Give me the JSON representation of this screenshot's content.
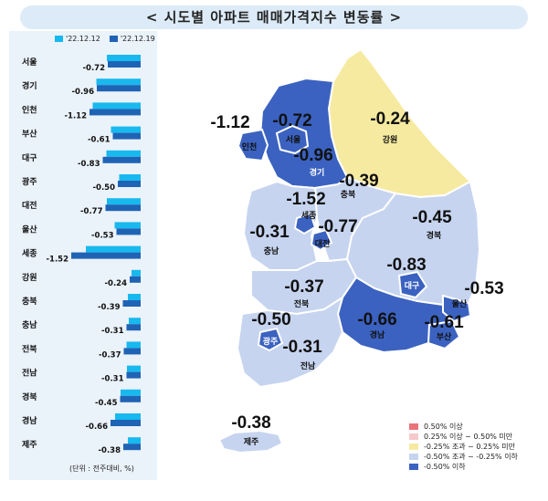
{
  "title": "< 시도별 아파트 매매가격지수 변동률 >",
  "unit_note": "(단위 : 전주대비, %)",
  "colors": {
    "series_prev": "#18b9ee",
    "series_curr": "#1f63b5",
    "map_dark": "#3b62c0",
    "map_light": "#c6d4ef",
    "map_yellow": "#f6eaa1",
    "panel_bg": "#eaf2fa",
    "title_bg": "#dcebf7"
  },
  "chart_data": [
    {
      "type": "bar",
      "orientation": "horizontal",
      "categories": [
        "서울",
        "경기",
        "인천",
        "부산",
        "대구",
        "광주",
        "대전",
        "울산",
        "세종",
        "강원",
        "충북",
        "충남",
        "전북",
        "전남",
        "경북",
        "경남",
        "제주"
      ],
      "series": [
        {
          "name": "'22.12.12",
          "values": [
            -0.74,
            -0.97,
            -1.05,
            -0.65,
            -0.75,
            -0.47,
            -0.74,
            -0.57,
            -1.2,
            -0.2,
            -0.28,
            -0.26,
            -0.31,
            -0.3,
            -0.44,
            -0.56,
            -0.28
          ]
        },
        {
          "name": "'22.12.19",
          "values": [
            -0.72,
            -0.96,
            -1.12,
            -0.61,
            -0.83,
            -0.5,
            -0.77,
            -0.53,
            -1.52,
            -0.24,
            -0.39,
            -0.31,
            -0.37,
            -0.31,
            -0.45,
            -0.66,
            -0.38
          ]
        }
      ],
      "data_labels": [
        "-0.72",
        "-0.96",
        "-1.12",
        "-0.61",
        "-0.83",
        "-0.50",
        "-0.77",
        "-0.53",
        "-1.52",
        "-0.24",
        "-0.39",
        "-0.31",
        "-0.37",
        "-0.31",
        "-0.45",
        "-0.66",
        "-0.38"
      ],
      "legend_position": "top",
      "grid": false
    },
    {
      "type": "choropleth-map",
      "regions": [
        {
          "name": "서울",
          "value": "-0.72",
          "class": "-0.50% 이하"
        },
        {
          "name": "경기",
          "value": "-0.96",
          "class": "-0.50% 이하"
        },
        {
          "name": "인천",
          "value": "-1.12",
          "class": "-0.50% 이하"
        },
        {
          "name": "강원",
          "value": "-0.24",
          "class": "-0.25% 조과 ~ 0.25% 미만"
        },
        {
          "name": "충북",
          "value": "-0.39",
          "class": "-0.50% 조과 ~ -0.25% 이하"
        },
        {
          "name": "세종",
          "value": "-1.52",
          "class": "-0.50% 이하"
        },
        {
          "name": "대전",
          "value": "-0.77",
          "class": "-0.50% 이하"
        },
        {
          "name": "충남",
          "value": "-0.31",
          "class": "-0.50% 조과 ~ -0.25% 이하"
        },
        {
          "name": "경북",
          "value": "-0.45",
          "class": "-0.50% 조과 ~ -0.25% 이하"
        },
        {
          "name": "대구",
          "value": "-0.83",
          "class": "-0.50% 이하"
        },
        {
          "name": "울산",
          "value": "-0.53",
          "class": "-0.50% 이하"
        },
        {
          "name": "전북",
          "value": "-0.37",
          "class": "-0.50% 조과 ~ -0.25% 이하"
        },
        {
          "name": "광주",
          "value": "-0.50",
          "class": "-0.50% 이하"
        },
        {
          "name": "전남",
          "value": "-0.31",
          "class": "-0.50% 조과 ~ -0.25% 이하"
        },
        {
          "name": "경남",
          "value": "-0.66",
          "class": "-0.50% 이하"
        },
        {
          "name": "부산",
          "value": "-0.61",
          "class": "-0.50% 이하"
        },
        {
          "name": "제주",
          "value": "-0.38",
          "class": "-0.50% 조과 ~ -0.25% 이하"
        }
      ],
      "legend": [
        {
          "label": "0.50% 이상",
          "color": "#e8747a"
        },
        {
          "label": "0.25% 이상 ~ 0.50% 미만",
          "color": "#f6c8cb"
        },
        {
          "label": "-0.25% 조과 ~ 0.25% 미만",
          "color": "#f6eaa1"
        },
        {
          "label": "-0.50% 조과 ~ -0.25% 이하",
          "color": "#c6d4ef"
        },
        {
          "label": "-0.50% 이하",
          "color": "#3b62c0"
        }
      ]
    }
  ]
}
